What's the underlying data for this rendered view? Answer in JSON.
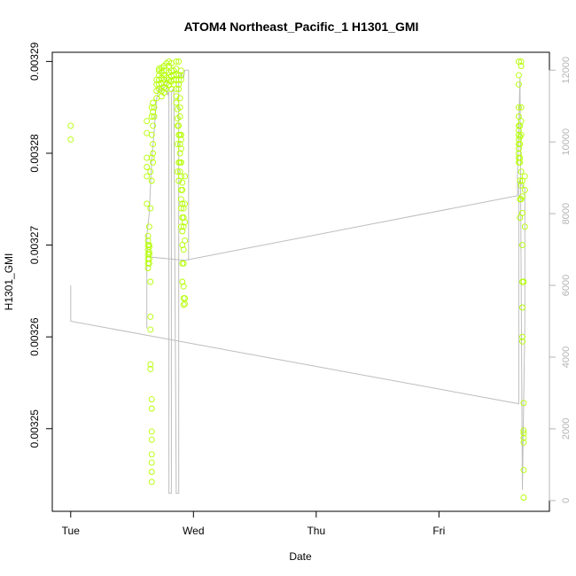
{
  "chart_data": {
    "type": "scatter",
    "title": "ATOM4 Northeast_Pacific_1 H1301_GMI",
    "xlabel": "Date",
    "ylabel": "H1301_GMI",
    "x_ticks": [
      "Tue",
      "Wed",
      "Thu",
      "Fri"
    ],
    "x_tick_positions_days": [
      0,
      1,
      2,
      3
    ],
    "xlim_days": [
      -0.15,
      3.9
    ],
    "ylim": [
      0.003241,
      0.003291
    ],
    "y_ticks": [
      0.00325,
      0.00326,
      0.00327,
      0.00328,
      0.00329
    ],
    "y_tick_labels": [
      "0.00325",
      "0.00326",
      "0.00327",
      "0.00328",
      "0.00329"
    ],
    "y2_ticks": [
      0,
      2000,
      4000,
      6000,
      8000,
      10000,
      12000
    ],
    "y2lim": [
      -300,
      12500
    ],
    "grid": false,
    "series": [
      {
        "color": "#b4ff00",
        "points": [
          [
            0.0,
            0.003283
          ],
          [
            0.0,
            0.0032815
          ],
          [
            0.62,
            0.0032835
          ],
          [
            0.62,
            0.0032822
          ],
          [
            0.62,
            0.0032795
          ],
          [
            0.62,
            0.0032785
          ],
          [
            0.62,
            0.0032775
          ],
          [
            0.62,
            0.0032745
          ],
          [
            0.63,
            0.003271
          ],
          [
            0.63,
            0.0032705
          ],
          [
            0.63,
            0.00327
          ],
          [
            0.63,
            0.0032695
          ],
          [
            0.63,
            0.003269
          ],
          [
            0.63,
            0.0032685
          ],
          [
            0.63,
            0.003268
          ],
          [
            0.63,
            0.0032675
          ],
          [
            0.64,
            0.003272
          ],
          [
            0.64,
            0.00327
          ],
          [
            0.64,
            0.0032698
          ],
          [
            0.64,
            0.0032692
          ],
          [
            0.64,
            0.003269
          ],
          [
            0.64,
            0.0032685
          ],
          [
            0.64,
            0.003268
          ],
          [
            0.65,
            0.003278
          ],
          [
            0.65,
            0.003274
          ],
          [
            0.65,
            0.003266
          ],
          [
            0.65,
            0.0032622
          ],
          [
            0.65,
            0.0032608
          ],
          [
            0.65,
            0.003257
          ],
          [
            0.65,
            0.0032565
          ],
          [
            0.66,
            0.003285
          ],
          [
            0.66,
            0.003284
          ],
          [
            0.66,
            0.003282
          ],
          [
            0.66,
            0.0032795
          ],
          [
            0.66,
            0.003277
          ],
          [
            0.66,
            0.0032532
          ],
          [
            0.66,
            0.0032522
          ],
          [
            0.66,
            0.0032497
          ],
          [
            0.66,
            0.0032488
          ],
          [
            0.66,
            0.0032472
          ],
          [
            0.66,
            0.0032463
          ],
          [
            0.66,
            0.0032453
          ],
          [
            0.66,
            0.0032442
          ],
          [
            0.67,
            0.0032855
          ],
          [
            0.67,
            0.0032845
          ],
          [
            0.67,
            0.003283
          ],
          [
            0.67,
            0.003281
          ],
          [
            0.67,
            0.00328
          ],
          [
            0.67,
            0.003279
          ],
          [
            0.68,
            0.003285
          ],
          [
            0.68,
            0.003284
          ],
          [
            0.7,
            0.003288
          ],
          [
            0.7,
            0.0032875
          ],
          [
            0.7,
            0.0032868
          ],
          [
            0.7,
            0.003286
          ],
          [
            0.72,
            0.0032892
          ],
          [
            0.72,
            0.003289
          ],
          [
            0.72,
            0.0032885
          ],
          [
            0.72,
            0.003288
          ],
          [
            0.72,
            0.0032875
          ],
          [
            0.72,
            0.003287
          ],
          [
            0.74,
            0.0032893
          ],
          [
            0.74,
            0.0032888
          ],
          [
            0.74,
            0.0032882
          ],
          [
            0.74,
            0.0032876
          ],
          [
            0.74,
            0.0032868
          ],
          [
            0.74,
            0.0032862
          ],
          [
            0.76,
            0.0032895
          ],
          [
            0.76,
            0.003289
          ],
          [
            0.76,
            0.0032885
          ],
          [
            0.76,
            0.003288
          ],
          [
            0.76,
            0.0032872
          ],
          [
            0.76,
            0.0032866
          ],
          [
            0.78,
            0.0032898
          ],
          [
            0.78,
            0.003289
          ],
          [
            0.78,
            0.0032882
          ],
          [
            0.78,
            0.0032876
          ],
          [
            0.78,
            0.003287
          ],
          [
            0.8,
            0.00329
          ],
          [
            0.8,
            0.0032895
          ],
          [
            0.8,
            0.0032888
          ],
          [
            0.8,
            0.003288
          ],
          [
            0.8,
            0.0032874
          ],
          [
            0.82,
            0.0032898
          ],
          [
            0.82,
            0.003289
          ],
          [
            0.82,
            0.0032884
          ],
          [
            0.82,
            0.0032878
          ],
          [
            0.82,
            0.003287
          ],
          [
            0.84,
            0.003289
          ],
          [
            0.84,
            0.0032885
          ],
          [
            0.84,
            0.003288
          ],
          [
            0.84,
            0.0032875
          ],
          [
            0.86,
            0.00329
          ],
          [
            0.86,
            0.0032892
          ],
          [
            0.86,
            0.0032886
          ],
          [
            0.86,
            0.003288
          ],
          [
            0.86,
            0.003287
          ],
          [
            0.86,
            0.0032862
          ],
          [
            0.86,
            0.0032855
          ],
          [
            0.87,
            0.0032848
          ],
          [
            0.87,
            0.0032838
          ],
          [
            0.87,
            0.003283
          ],
          [
            0.87,
            0.003281
          ],
          [
            0.87,
            0.003278
          ],
          [
            0.88,
            0.00329
          ],
          [
            0.88,
            0.0032885
          ],
          [
            0.88,
            0.003288
          ],
          [
            0.88,
            0.0032875
          ],
          [
            0.88,
            0.003287
          ],
          [
            0.88,
            0.003283
          ],
          [
            0.88,
            0.003282
          ],
          [
            0.88,
            0.003279
          ],
          [
            0.88,
            0.003277
          ],
          [
            0.89,
            0.003286
          ],
          [
            0.89,
            0.003285
          ],
          [
            0.89,
            0.003284
          ],
          [
            0.89,
            0.003282
          ],
          [
            0.89,
            0.003281
          ],
          [
            0.89,
            0.00328
          ],
          [
            0.89,
            0.003279
          ],
          [
            0.89,
            0.003278
          ],
          [
            0.9,
            0.003289
          ],
          [
            0.9,
            0.0032885
          ],
          [
            0.9,
            0.003288
          ],
          [
            0.9,
            0.003282
          ],
          [
            0.9,
            0.0032815
          ],
          [
            0.9,
            0.0032805
          ],
          [
            0.9,
            0.003279
          ],
          [
            0.9,
            0.0032775
          ],
          [
            0.9,
            0.003276
          ],
          [
            0.9,
            0.003275
          ],
          [
            0.9,
            0.003274
          ],
          [
            0.9,
            0.003272
          ],
          [
            0.91,
            0.0032768
          ],
          [
            0.91,
            0.003276
          ],
          [
            0.91,
            0.0032745
          ],
          [
            0.91,
            0.003273
          ],
          [
            0.91,
            0.0032715
          ],
          [
            0.91,
            0.00327
          ],
          [
            0.91,
            0.003268
          ],
          [
            0.91,
            0.003266
          ],
          [
            0.92,
            0.003274
          ],
          [
            0.92,
            0.003273
          ],
          [
            0.92,
            0.003272
          ],
          [
            0.92,
            0.0032695
          ],
          [
            0.92,
            0.003268
          ],
          [
            0.92,
            0.0032655
          ],
          [
            0.92,
            0.0032642
          ],
          [
            0.92,
            0.0032635
          ],
          [
            0.93,
            0.0032775
          ],
          [
            0.93,
            0.0032745
          ],
          [
            0.93,
            0.0032725
          ],
          [
            0.93,
            0.0032705
          ],
          [
            0.93,
            0.0032642
          ],
          [
            0.93,
            0.0032636
          ],
          [
            3.65,
            0.00329
          ],
          [
            3.65,
            0.0032885
          ],
          [
            3.65,
            0.0032875
          ],
          [
            3.65,
            0.003285
          ],
          [
            3.65,
            0.003284
          ],
          [
            3.65,
            0.003283
          ],
          [
            3.65,
            0.0032825
          ],
          [
            3.65,
            0.003282
          ],
          [
            3.65,
            0.0032815
          ],
          [
            3.65,
            0.003281
          ],
          [
            3.65,
            0.0032805
          ],
          [
            3.65,
            0.00328
          ],
          [
            3.65,
            0.0032795
          ],
          [
            3.65,
            0.003279
          ],
          [
            3.66,
            0.003283
          ],
          [
            3.66,
            0.0032818
          ],
          [
            3.66,
            0.003281
          ],
          [
            3.66,
            0.0032795
          ],
          [
            3.66,
            0.003279
          ],
          [
            3.66,
            0.003277
          ],
          [
            3.66,
            0.003275
          ],
          [
            3.66,
            0.003273
          ],
          [
            3.67,
            0.00329
          ],
          [
            3.67,
            0.0032895
          ],
          [
            3.67,
            0.003285
          ],
          [
            3.67,
            0.0032835
          ],
          [
            3.67,
            0.003282
          ],
          [
            3.67,
            0.003278
          ],
          [
            3.67,
            0.0032765
          ],
          [
            3.67,
            0.003275
          ],
          [
            3.68,
            0.003277
          ],
          [
            3.68,
            0.0032753
          ],
          [
            3.68,
            0.0032735
          ],
          [
            3.68,
            0.00327
          ],
          [
            3.68,
            0.003266
          ],
          [
            3.68,
            0.0032632
          ],
          [
            3.68,
            0.00326
          ],
          [
            3.68,
            0.0032595
          ],
          [
            3.69,
            0.003266
          ],
          [
            3.69,
            0.0032528
          ],
          [
            3.69,
            0.0032498
          ],
          [
            3.69,
            0.0032495
          ],
          [
            3.69,
            0.003249
          ],
          [
            3.69,
            0.0032485
          ],
          [
            3.69,
            0.0032455
          ],
          [
            3.69,
            0.0032425
          ],
          [
            3.7,
            0.0032775
          ],
          [
            3.7,
            0.003276
          ],
          [
            3.7,
            0.003272
          ]
        ]
      }
    ],
    "secondary_line": {
      "color": "#bdbdbd",
      "axis": "right",
      "points": [
        [
          0.0,
          6000
        ],
        [
          0.0,
          5000
        ],
        [
          3.65,
          2700
        ],
        [
          3.65,
          8900
        ],
        [
          3.7,
          8700
        ],
        [
          3.7,
          5000
        ],
        [
          3.68,
          300
        ],
        [
          3.66,
          11800
        ],
        [
          3.64,
          9000
        ],
        [
          3.64,
          8500
        ],
        [
          0.93,
          6700
        ],
        [
          0.62,
          6800
        ],
        [
          0.62,
          4800
        ],
        [
          0.62,
          7400
        ],
        [
          0.64,
          8000
        ],
        [
          0.66,
          9500
        ],
        [
          0.68,
          10300
        ],
        [
          0.7,
          11200
        ],
        [
          0.72,
          11500
        ],
        [
          0.74,
          11400
        ],
        [
          0.76,
          11600
        ],
        [
          0.78,
          11800
        ],
        [
          0.79,
          11300
        ],
        [
          0.8,
          11400
        ],
        [
          0.8,
          200
        ],
        [
          0.82,
          200
        ],
        [
          0.82,
          11400
        ],
        [
          0.84,
          11500
        ],
        [
          0.86,
          200
        ],
        [
          0.88,
          200
        ],
        [
          0.88,
          11800
        ],
        [
          0.9,
          11900
        ],
        [
          0.92,
          11800
        ],
        [
          0.93,
          12000
        ],
        [
          0.96,
          12000
        ],
        [
          0.96,
          6700
        ]
      ]
    }
  }
}
